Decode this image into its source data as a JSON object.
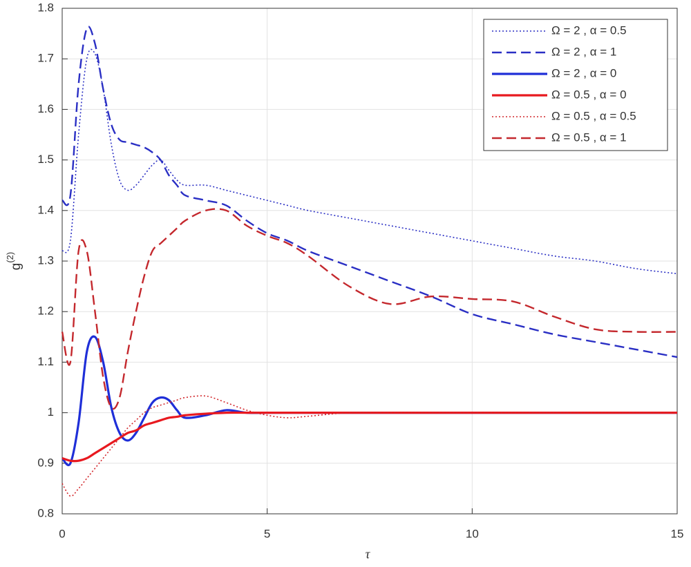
{
  "chart_data": {
    "type": "line",
    "xlabel": "τ",
    "ylabel": "g",
    "ylabel_superscript": "(2)",
    "x": [
      0,
      0.2,
      0.4,
      0.6,
      0.8,
      1,
      1.2,
      1.4,
      1.6,
      1.8,
      2,
      2.2,
      2.4,
      2.6,
      2.8,
      3,
      3.5,
      4,
      4.5,
      5,
      5.5,
      6,
      7,
      8,
      9,
      10,
      11,
      12,
      13,
      14,
      15
    ],
    "series": [
      {
        "name": "Ω = 2 , α = 0.5",
        "color": "#2a2fc4",
        "dash": "dotted",
        "values": [
          1.32,
          1.34,
          1.55,
          1.7,
          1.71,
          1.64,
          1.53,
          1.46,
          1.44,
          1.45,
          1.47,
          1.49,
          1.5,
          1.48,
          1.46,
          1.45,
          1.45,
          1.44,
          1.43,
          1.42,
          1.41,
          1.4,
          1.385,
          1.37,
          1.355,
          1.34,
          1.325,
          1.31,
          1.3,
          1.285,
          1.275
        ]
      },
      {
        "name": "Ω = 2 , α = 1",
        "color": "#2a2fc4",
        "dash": "dashed",
        "values": [
          1.42,
          1.43,
          1.65,
          1.76,
          1.73,
          1.64,
          1.57,
          1.54,
          1.535,
          1.53,
          1.525,
          1.515,
          1.5,
          1.47,
          1.45,
          1.43,
          1.42,
          1.41,
          1.38,
          1.355,
          1.34,
          1.32,
          1.29,
          1.26,
          1.23,
          1.195,
          1.175,
          1.155,
          1.14,
          1.125,
          1.11
        ]
      },
      {
        "name": "Ω = 2 , α = 0",
        "color": "#1f2fd8",
        "dash": "solid",
        "values": [
          0.91,
          0.9,
          0.98,
          1.12,
          1.15,
          1.1,
          1.01,
          0.96,
          0.945,
          0.96,
          0.99,
          1.02,
          1.03,
          1.025,
          1.005,
          0.99,
          0.995,
          1.005,
          1,
          1,
          1,
          1,
          1,
          1,
          1,
          1,
          1,
          1,
          1,
          1,
          1
        ]
      },
      {
        "name": "Ω = 0.5 , α = 0",
        "color": "#e8191f",
        "dash": "solid",
        "values": [
          0.91,
          0.905,
          0.905,
          0.91,
          0.92,
          0.93,
          0.94,
          0.95,
          0.96,
          0.965,
          0.975,
          0.98,
          0.985,
          0.99,
          0.992,
          0.995,
          0.998,
          1,
          1,
          1,
          1,
          1,
          1,
          1,
          1,
          1,
          1,
          1,
          1,
          1,
          1
        ]
      },
      {
        "name": "Ω = 0.5 , α = 0.5",
        "color": "#d2262b",
        "dash": "dotted",
        "values": [
          0.86,
          0.835,
          0.85,
          0.87,
          0.89,
          0.91,
          0.93,
          0.95,
          0.97,
          0.985,
          1.0,
          1.01,
          1.015,
          1.02,
          1.025,
          1.03,
          1.033,
          1.02,
          1.005,
          0.995,
          0.99,
          0.993,
          1,
          1,
          1,
          1,
          1,
          1,
          1,
          1,
          1
        ]
      },
      {
        "name": "Ω = 0.5 , α = 1",
        "color": "#c4282d",
        "dash": "dashed",
        "values": [
          1.16,
          1.1,
          1.32,
          1.32,
          1.2,
          1.07,
          1.01,
          1.03,
          1.12,
          1.2,
          1.27,
          1.32,
          1.335,
          1.35,
          1.365,
          1.38,
          1.4,
          1.4,
          1.37,
          1.35,
          1.335,
          1.31,
          1.25,
          1.215,
          1.23,
          1.225,
          1.22,
          1.19,
          1.165,
          1.16,
          1.16
        ]
      }
    ],
    "xlim": [
      0,
      15
    ],
    "xticks": [
      0,
      5,
      10,
      15
    ],
    "ylim": [
      0.8,
      1.8
    ],
    "yticks": [
      0.8,
      0.9,
      1,
      1.1,
      1.2,
      1.3,
      1.4,
      1.5,
      1.6,
      1.7,
      1.8
    ],
    "grid": true,
    "legend": "top-right"
  }
}
